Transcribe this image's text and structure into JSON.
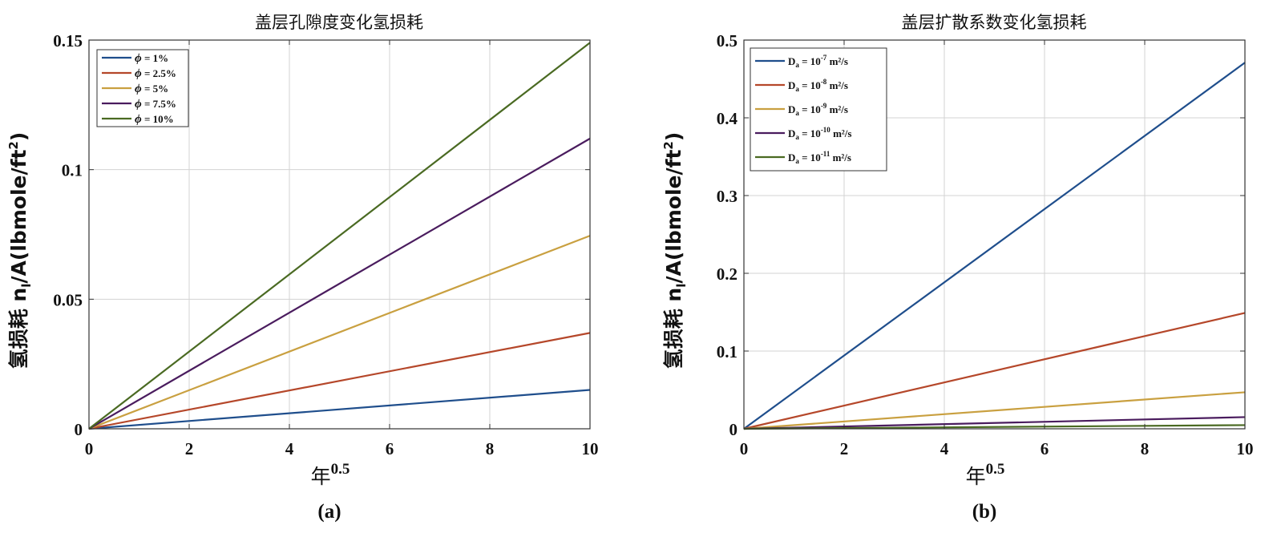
{
  "chart_data": [
    {
      "type": "line",
      "title": "盖层孔隙度变化氢损耗",
      "xlabel": "年",
      "xlabel_sup": "0.5",
      "ylabel_prefix": "氢损耗 ",
      "ylabel_main": "n",
      "ylabel_sub": "l",
      "ylabel_rest": "/A(lbmole/ft",
      "ylabel_sup": "2",
      "ylabel_end": ")",
      "panel_label": "(a)",
      "xlim": [
        0,
        10
      ],
      "ylim": [
        0,
        0.15
      ],
      "xticks": [
        "0",
        "2",
        "4",
        "6",
        "8",
        "10"
      ],
      "yticks": [
        "0",
        "0.05",
        "0.1",
        "0.15"
      ],
      "grid": true,
      "legend_position": "top-left",
      "series": [
        {
          "name_symbol": "ϕ",
          "name_text": " = 1%",
          "color": "#1f4e8c",
          "x": [
            0,
            10
          ],
          "y": [
            0,
            0.015
          ]
        },
        {
          "name_symbol": "ϕ",
          "name_text": " = 2.5%",
          "color": "#b5472a",
          "x": [
            0,
            10
          ],
          "y": [
            0,
            0.037
          ]
        },
        {
          "name_symbol": "ϕ",
          "name_text": " = 5%",
          "color": "#c9a040",
          "x": [
            0,
            10
          ],
          "y": [
            0,
            0.0745
          ]
        },
        {
          "name_symbol": "ϕ",
          "name_text": " = 7.5%",
          "color": "#4a1c5e",
          "x": [
            0,
            10
          ],
          "y": [
            0,
            0.112
          ]
        },
        {
          "name_symbol": "ϕ",
          "name_text": " = 10%",
          "color": "#4a6a22",
          "x": [
            0,
            10
          ],
          "y": [
            0,
            0.149
          ]
        }
      ]
    },
    {
      "type": "line",
      "title": "盖层扩散系数变化氢损耗",
      "xlabel": "年",
      "xlabel_sup": "0.5",
      "ylabel_prefix": "氢损耗 ",
      "ylabel_main": "n",
      "ylabel_sub": "l",
      "ylabel_rest": "/A(lbmole/ft",
      "ylabel_sup": "2",
      "ylabel_end": ")",
      "panel_label": "(b)",
      "xlim": [
        0,
        10
      ],
      "ylim": [
        0,
        0.5
      ],
      "xticks": [
        "0",
        "2",
        "4",
        "6",
        "8",
        "10"
      ],
      "yticks": [
        "0",
        "0.1",
        "0.2",
        "0.3",
        "0.4",
        "0.5"
      ],
      "grid": true,
      "legend_position": "top-left",
      "series": [
        {
          "name_main": "D",
          "name_sub": "a",
          "name_mid": " = 10",
          "name_exp": "-7",
          "name_unit": " m²/s",
          "color": "#1f4e8c",
          "x": [
            0,
            10
          ],
          "y": [
            0,
            0.471
          ]
        },
        {
          "name_main": "D",
          "name_sub": "a",
          "name_mid": " = 10",
          "name_exp": "-8",
          "name_unit": " m²/s",
          "color": "#b5472a",
          "x": [
            0,
            10
          ],
          "y": [
            0,
            0.149
          ]
        },
        {
          "name_main": "D",
          "name_sub": "a",
          "name_mid": " = 10",
          "name_exp": "-9",
          "name_unit": " m²/s",
          "color": "#c9a040",
          "x": [
            0,
            10
          ],
          "y": [
            0,
            0.047
          ]
        },
        {
          "name_main": "D",
          "name_sub": "a",
          "name_mid": " = 10",
          "name_exp": "-10",
          "name_unit": " m²/s",
          "color": "#4a1c5e",
          "x": [
            0,
            10
          ],
          "y": [
            0,
            0.015
          ]
        },
        {
          "name_main": "D",
          "name_sub": "a",
          "name_mid": " = 10",
          "name_exp": "-11",
          "name_unit": " m²/s",
          "color": "#4a6a22",
          "x": [
            0,
            10
          ],
          "y": [
            0,
            0.0047
          ]
        }
      ]
    }
  ]
}
